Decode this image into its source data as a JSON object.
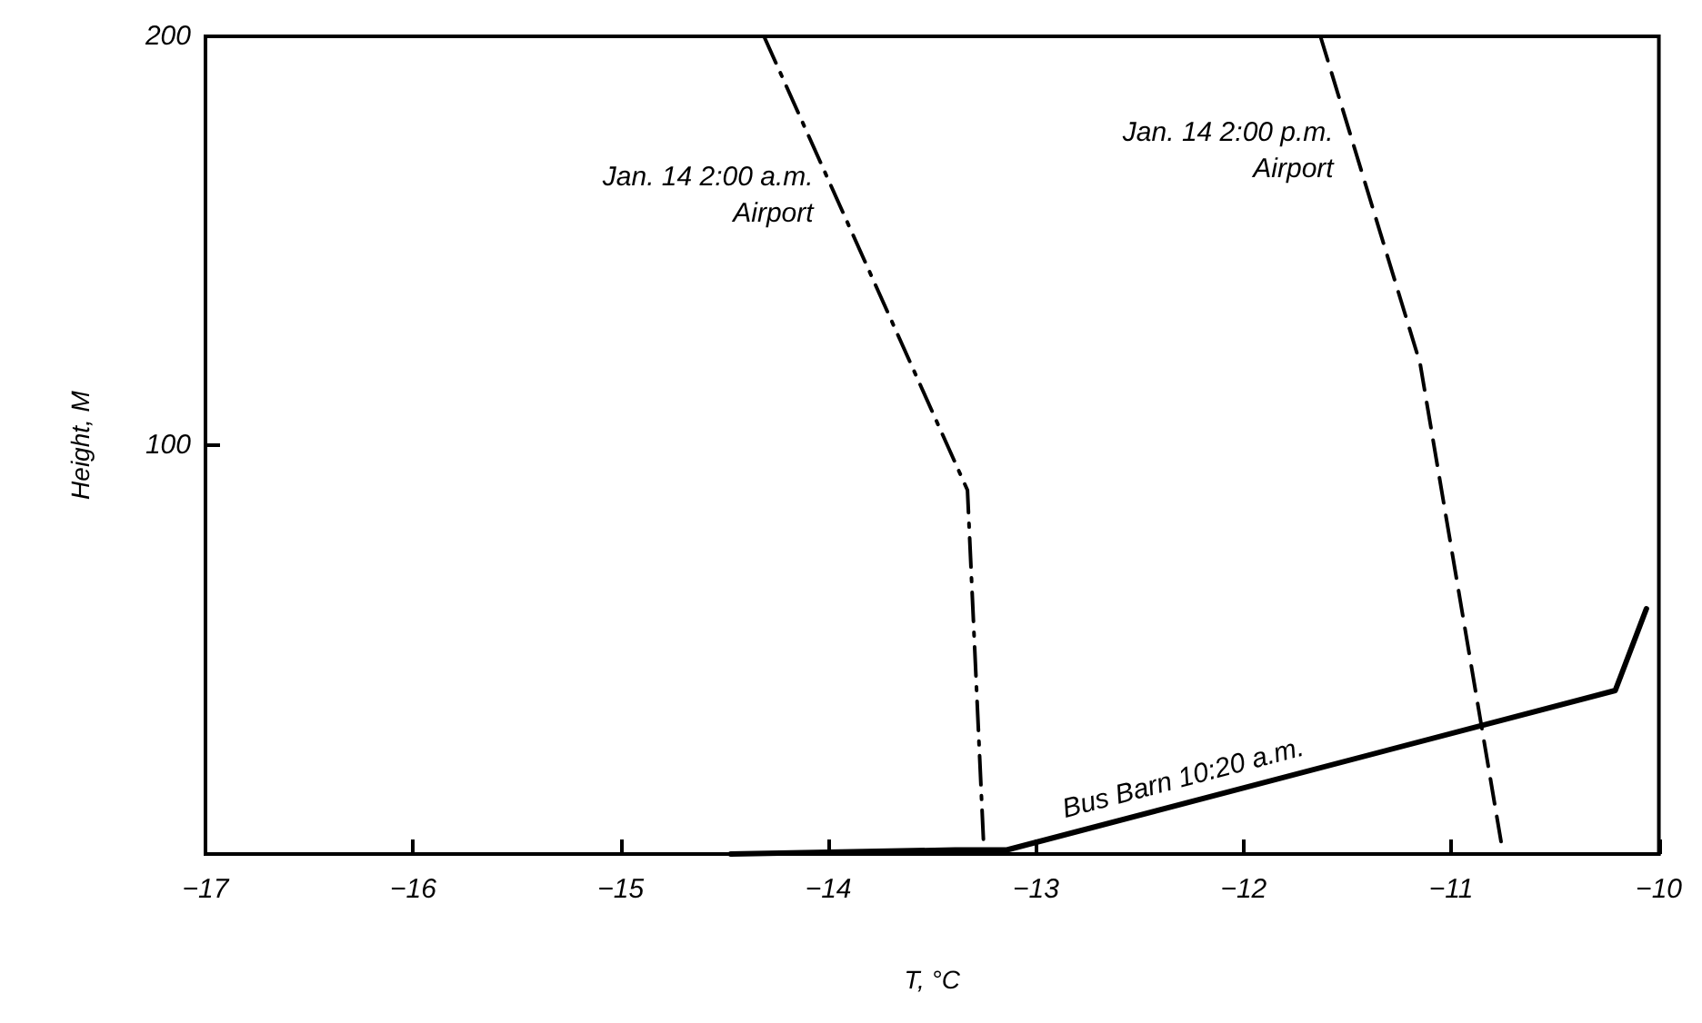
{
  "chart_data": {
    "type": "line",
    "xlabel": "T, °C",
    "ylabel": "Height, M",
    "xlim": [
      -17,
      -10
    ],
    "ylim": [
      0,
      200
    ],
    "xticks": [
      -17,
      -16,
      -15,
      -14,
      -13,
      -12,
      -11,
      -10
    ],
    "yticks": [
      {
        "value": 0,
        "label": null
      },
      100,
      200
    ],
    "grid": false,
    "legend": false,
    "marker": "none",
    "series": [
      {
        "name": "Jan. 14 2:00 a.m.\nAirport",
        "color": "#000000",
        "line_style": "dashdot",
        "x": [
          -14.31,
          -13.33,
          -13.25
        ],
        "values": [
          200,
          89,
          0
        ]
      },
      {
        "name": "Jan. 14 2:00 p.m.\nAirport",
        "color": "#000000",
        "line_style": "dashed",
        "x": [
          -11.63,
          -11.15,
          -10.75
        ],
        "values": [
          200,
          120,
          0
        ]
      },
      {
        "name": "Bus Barn 10:20 a.m.",
        "color": "#000000",
        "line_style": "solid",
        "x": [
          -14.47,
          -13.39,
          -13.14,
          -10.21,
          -10.06
        ],
        "values": [
          0,
          1,
          1,
          40,
          60
        ]
      }
    ]
  }
}
